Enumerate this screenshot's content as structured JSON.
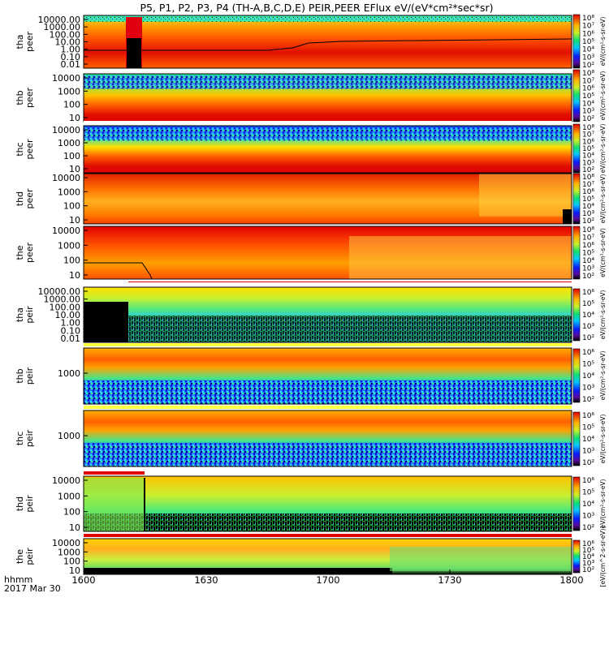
{
  "title": "P5, P1, P2, P3, P4 (TH-A,B,C,D,E) PEIR,PEER EFlux eV/(eV*cm²*sec*sr)",
  "x_ticks": [
    "1600",
    "1630",
    "1700",
    "1730",
    "1800"
  ],
  "x_corner_label": "hhmm",
  "x_date_label": "2017 Mar 30",
  "colorbar_unit_label": "eV/(cm²-s-sr-eV)",
  "colorbar_unit_label_ions": "[eV/(cm^2-s-sr-eV)]",
  "panels": [
    {
      "line1": "tha",
      "line2": "peer",
      "ylabels": [
        "10000.00",
        "1000.00",
        "100.00",
        "10.00",
        "1.00",
        "0.10",
        "0.01"
      ],
      "cbar": [
        "10⁸",
        "10⁷",
        "10⁶",
        "10⁵",
        "10⁴",
        "10³",
        "10²"
      ],
      "flag": "none"
    },
    {
      "line1": "thb",
      "line2": "peer",
      "ylabels": [
        "10000",
        "1000",
        "100",
        "10"
      ],
      "cbar": [
        "10⁸",
        "10⁷",
        "10⁶",
        "10⁵",
        "10⁴",
        "10³",
        "10²"
      ],
      "flag": "white"
    },
    {
      "line1": "thc",
      "line2": "peer",
      "ylabels": [
        "10000",
        "1000",
        "100",
        "10"
      ],
      "cbar": [
        "10⁸",
        "10⁷",
        "10⁶",
        "10⁵",
        "10⁴",
        "10³",
        "10²"
      ],
      "flag": "white"
    },
    {
      "line1": "thd",
      "line2": "peer",
      "ylabels": [
        "10000",
        "1000",
        "100",
        "10"
      ],
      "cbar": [
        "10⁸",
        "10⁷",
        "10⁶",
        "10⁵",
        "10⁴",
        "10³",
        "10²"
      ],
      "flag": "none"
    },
    {
      "line1": "the",
      "line2": "peer",
      "ylabels": [
        "10000",
        "1000",
        "100",
        "10"
      ],
      "cbar": [
        "10⁸",
        "10⁷",
        "10⁶",
        "10⁵",
        "10⁴",
        "10³",
        "10²"
      ],
      "flag": "red_after"
    },
    {
      "line1": "tha",
      "line2": "peir",
      "ylabels": [
        "10000.00",
        "1000.00",
        "100.00",
        "10.00",
        "1.00",
        "0.10",
        "0.01"
      ],
      "cbar": [
        "10⁶",
        "10⁵",
        "10⁴",
        "10³",
        "10²"
      ],
      "flag": "white"
    },
    {
      "line1": "thb",
      "line2": "peir",
      "ylabels": [
        "1000"
      ],
      "cbar": [
        "10⁶",
        "10⁵",
        "10⁴",
        "10³",
        "10²"
      ],
      "flag": "yellow"
    },
    {
      "line1": "thc",
      "line2": "peir",
      "ylabels": [
        "1000"
      ],
      "cbar": [
        "10⁶",
        "10⁵",
        "10⁴",
        "10³",
        "10²"
      ],
      "flag": "yellow"
    },
    {
      "line1": "thd",
      "line2": "peir",
      "ylabels": [
        "10000",
        "1000",
        "100",
        "10"
      ],
      "cbar": [
        "10⁶",
        "10⁵",
        "10⁴",
        "10³",
        "10²"
      ],
      "flag": "red_before"
    },
    {
      "line1": "the",
      "line2": "peir",
      "ylabels": [
        "10000",
        "1000",
        "100",
        "10"
      ],
      "cbar": [
        "10⁶",
        "10⁵",
        "10⁴",
        "10³",
        "10²"
      ],
      "flag": "red"
    }
  ],
  "chart_data": {
    "type": "heatmap",
    "title": "P5, P1, P2, P3, P4 (TH-A,B,C,D,E) PEIR,PEER EFlux eV/(eV*cm²*sec*sr)",
    "x": {
      "label": "hhmm",
      "date": "2017 Mar 30",
      "ticks": [
        "1600",
        "1630",
        "1700",
        "1730",
        "1800"
      ],
      "range_hhmm": [
        "1600",
        "1800"
      ]
    },
    "y_scale": "log",
    "y_unit": "eV",
    "color_scale": "log",
    "colormap": "rainbow (black low, blue, cyan, green, yellow, red high)",
    "series": [
      {
        "name": "tha peer",
        "energy_range": [
          0.01,
          30000
        ],
        "colorbar_range": [
          100,
          100000000
        ]
      },
      {
        "name": "thb peer",
        "energy_range": [
          5,
          20000
        ],
        "colorbar_range": [
          100,
          100000000
        ]
      },
      {
        "name": "thc peer",
        "energy_range": [
          5,
          20000
        ],
        "colorbar_range": [
          100,
          100000000
        ]
      },
      {
        "name": "thd peer",
        "energy_range": [
          5,
          30000
        ],
        "colorbar_range": [
          100,
          100000000
        ]
      },
      {
        "name": "the peer",
        "energy_range": [
          5,
          30000
        ],
        "colorbar_range": [
          100,
          100000000
        ]
      },
      {
        "name": "tha peir",
        "energy_range": [
          0.01,
          30000
        ],
        "colorbar_range": [
          100,
          1000000
        ]
      },
      {
        "name": "thb peir",
        "energy_range": [
          5,
          30000
        ],
        "colorbar_range": [
          100,
          1000000
        ]
      },
      {
        "name": "thc peir",
        "energy_range": [
          5,
          30000
        ],
        "colorbar_range": [
          100,
          1000000
        ]
      },
      {
        "name": "thd peir",
        "energy_range": [
          5,
          30000
        ],
        "colorbar_range": [
          100,
          1000000
        ]
      },
      {
        "name": "the peir",
        "energy_range": [
          5,
          30000
        ],
        "colorbar_range": [
          100,
          1000000
        ]
      }
    ]
  }
}
